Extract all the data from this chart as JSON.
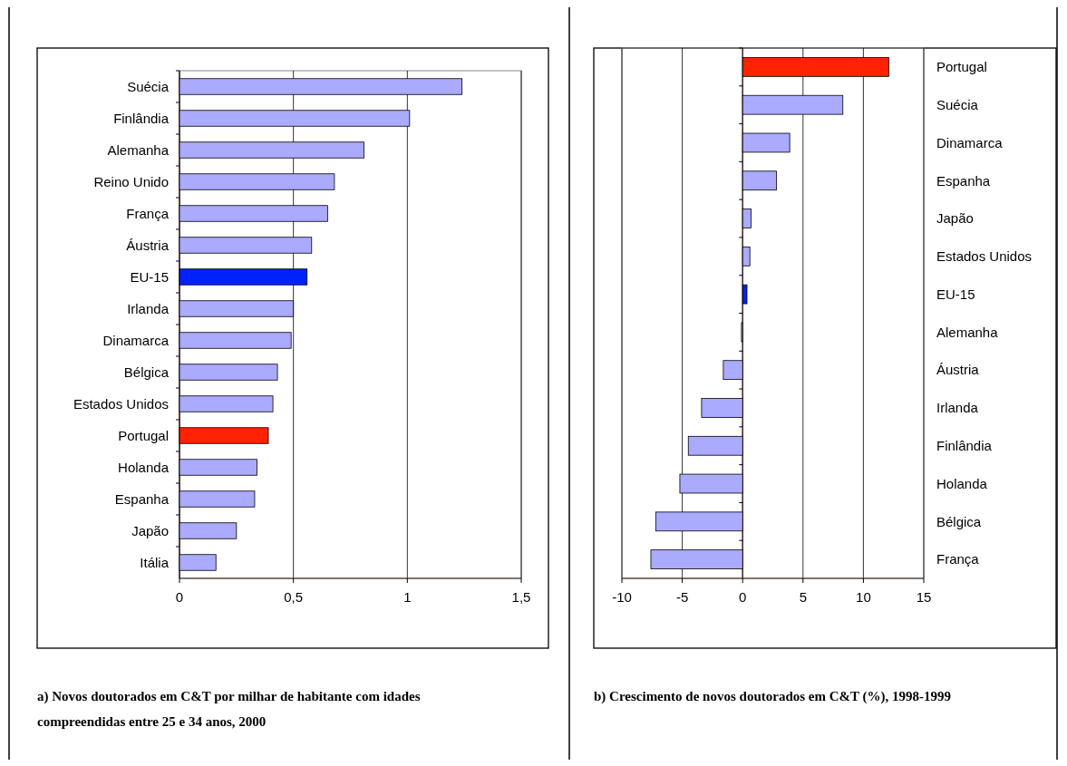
{
  "chart_data": [
    {
      "type": "bar",
      "orientation": "horizontal",
      "title": "a) Novos doutorados em C&T por milhar de habitante com idades compreendidas entre 25 e 34 anos, 2000",
      "categories": [
        "Suécia",
        "Finlândia",
        "Alemanha",
        "Reino Unido",
        "França",
        "Áustria",
        "EU-15",
        "Irlanda",
        "Dinamarca",
        "Bélgica",
        "Estados Unidos",
        "Portugal",
        "Holanda",
        "Espanha",
        "Japão",
        "Itália"
      ],
      "values": [
        1.24,
        1.01,
        0.81,
        0.68,
        0.65,
        0.58,
        0.56,
        0.5,
        0.49,
        0.43,
        0.41,
        0.39,
        0.34,
        0.33,
        0.25,
        0.16
      ],
      "colors": [
        "#aaaaff",
        "#aaaaff",
        "#aaaaff",
        "#aaaaff",
        "#aaaaff",
        "#aaaaff",
        "#0022ff",
        "#aaaaff",
        "#aaaaff",
        "#aaaaff",
        "#aaaaff",
        "#ff2200",
        "#aaaaff",
        "#aaaaff",
        "#aaaaff",
        "#aaaaff"
      ],
      "xlim": [
        0,
        1.5
      ],
      "xticks": [
        0,
        {
          "value": 0.5,
          "label": "0,5"
        },
        1,
        {
          "value": 1.5,
          "label": "1,5"
        }
      ],
      "grid": "x",
      "legend": false
    },
    {
      "type": "bar",
      "orientation": "horizontal",
      "title": "b) Crescimento de novos doutorados em C&T (%), 1998-1999",
      "categories": [
        "Portugal",
        "Suécia",
        "Dinamarca",
        "Espanha",
        "Japão",
        "Estados Unidos",
        "EU-15",
        "Alemanha",
        "Áustria",
        "Irlanda",
        "Finlândia",
        "Holanda",
        "Bélgica",
        "França"
      ],
      "values": [
        12.1,
        8.3,
        3.9,
        2.8,
        0.7,
        0.6,
        0.36,
        -0.1,
        -1.6,
        -3.4,
        -4.5,
        -5.2,
        -7.2,
        -7.6
      ],
      "colors": [
        "#ff2200",
        "#aaaaff",
        "#aaaaff",
        "#aaaaff",
        "#aaaaff",
        "#aaaaff",
        "#0022ff",
        "#aaaaff",
        "#aaaaff",
        "#aaaaff",
        "#aaaaff",
        "#aaaaff",
        "#aaaaff",
        "#aaaaff"
      ],
      "xlim": [
        -10,
        15
      ],
      "xticks": [
        -10,
        -5,
        0,
        5,
        10,
        15
      ],
      "grid": "x",
      "legend": false
    }
  ]
}
